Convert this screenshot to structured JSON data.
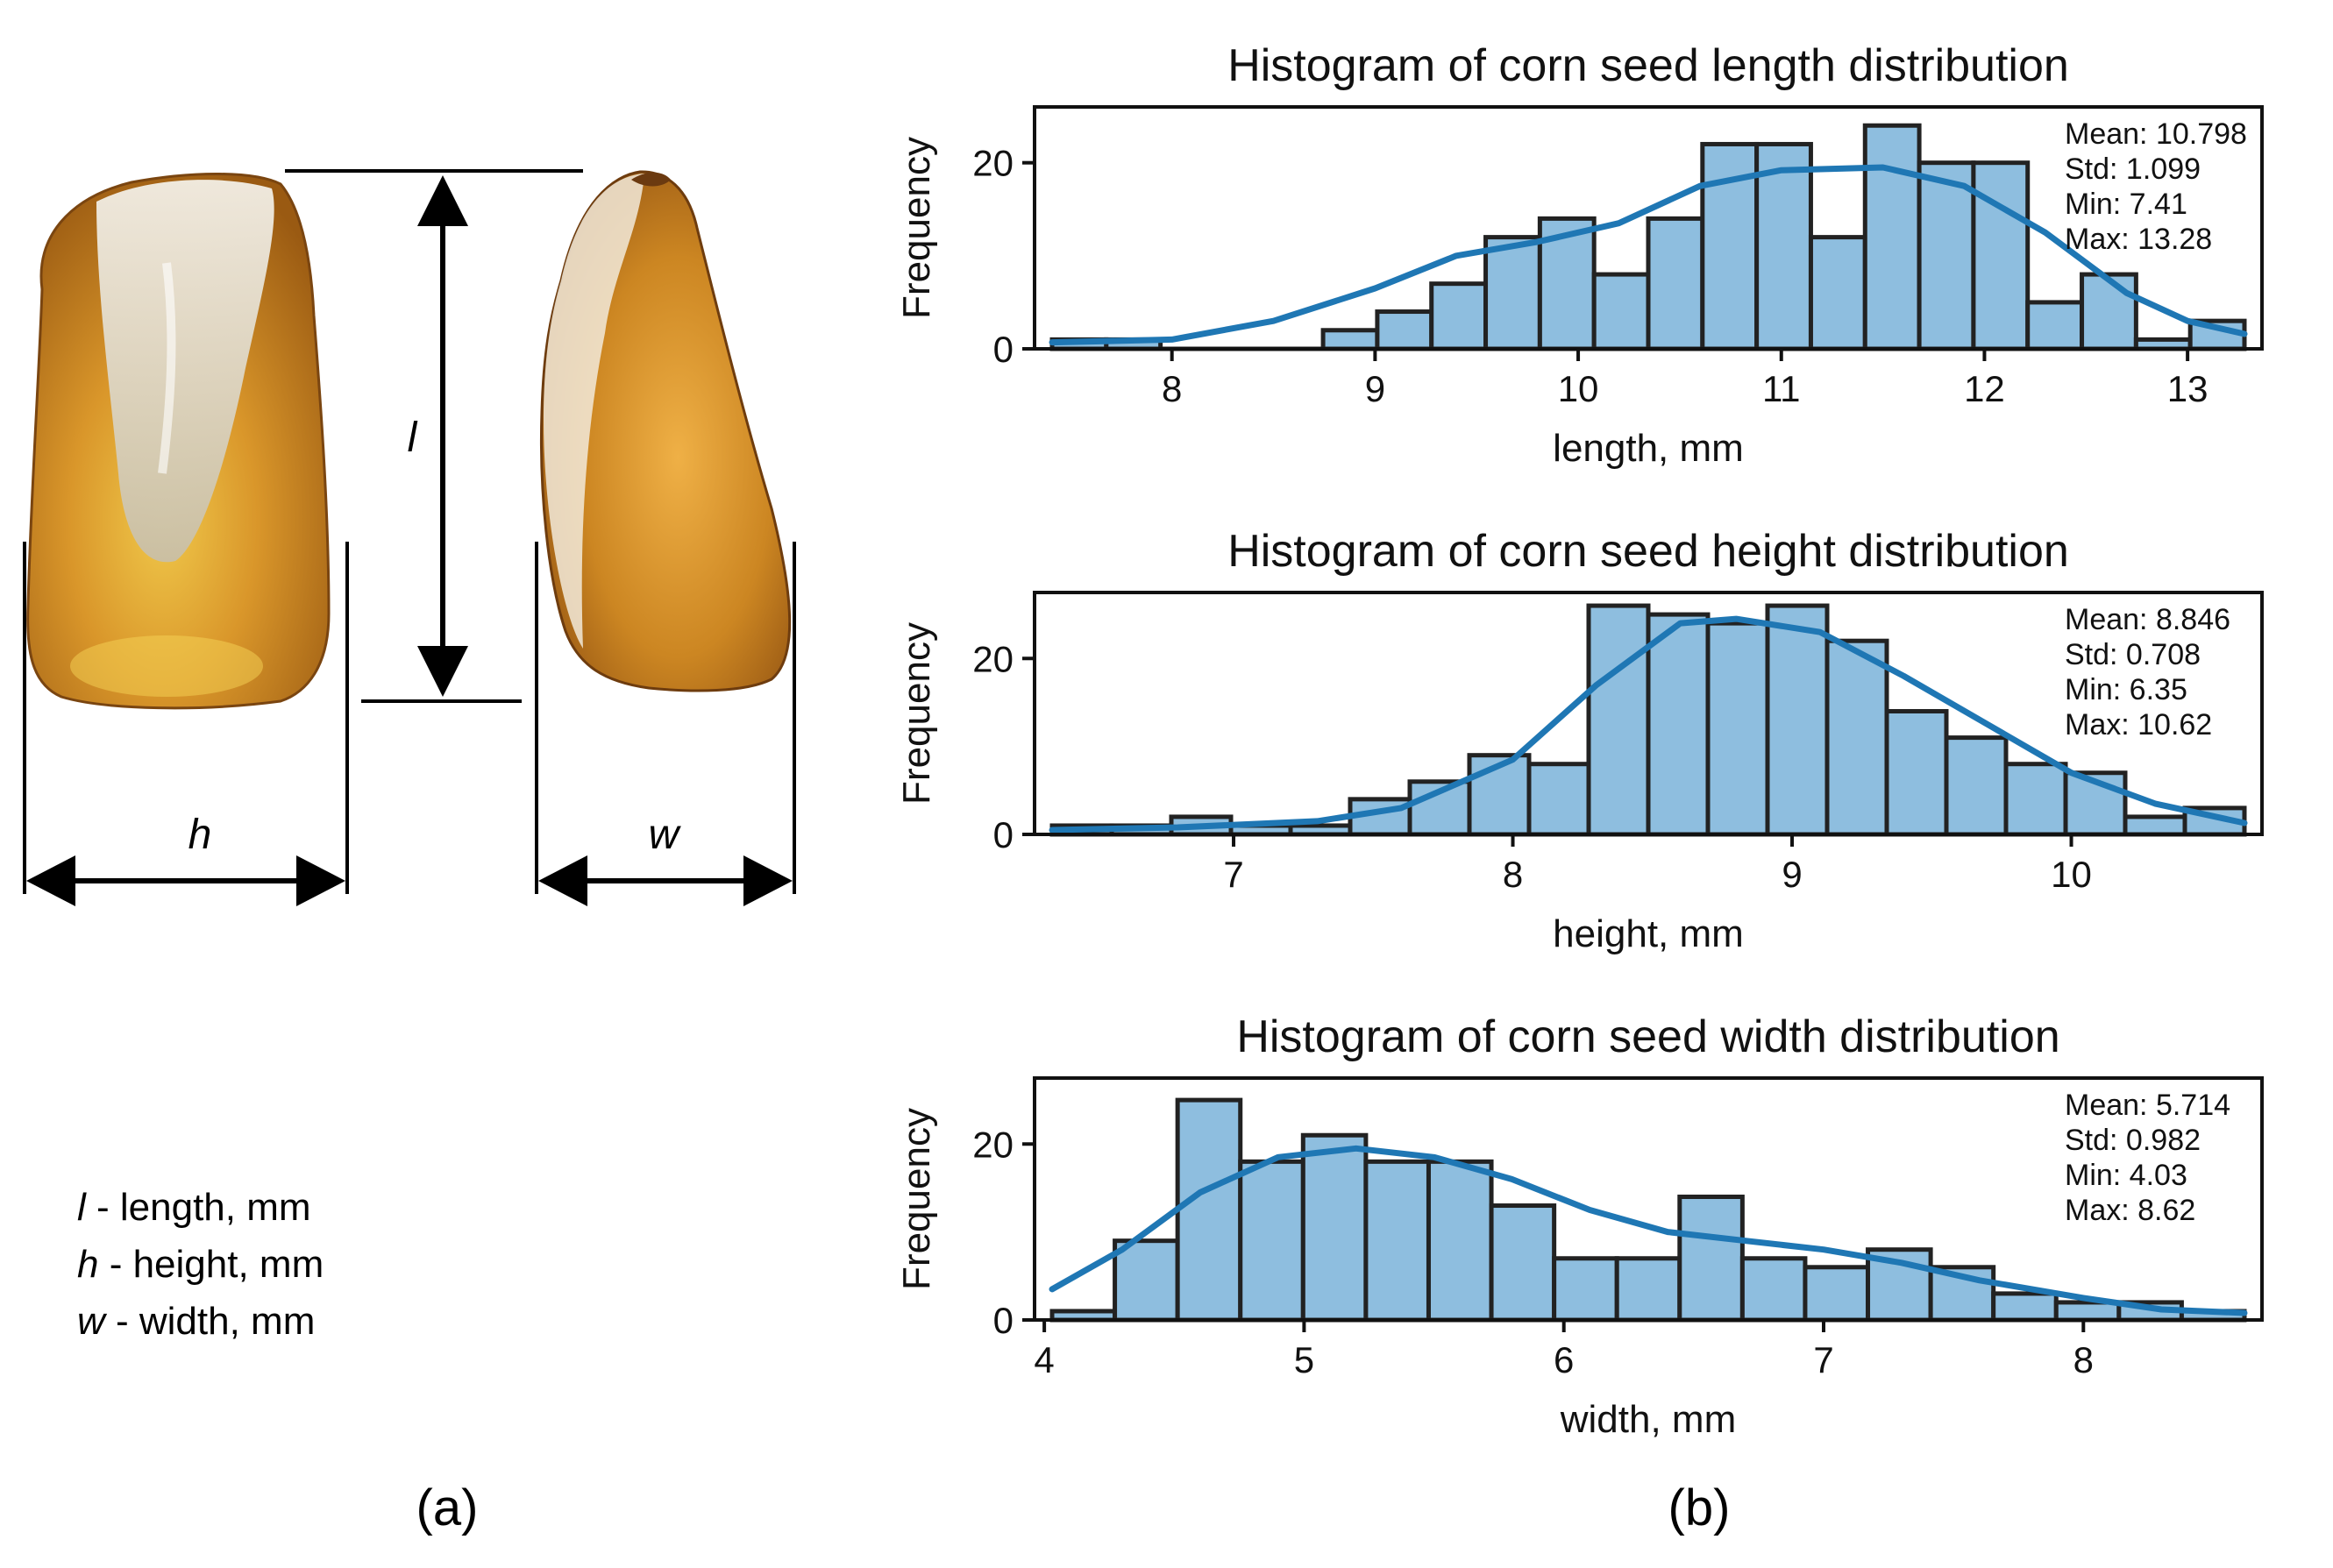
{
  "panel_a": {
    "dimension_labels": {
      "length": "l",
      "height": "h",
      "width": "w"
    },
    "legend": [
      {
        "symbol": "l",
        "text": " - length, mm"
      },
      {
        "symbol": "h",
        "text": " - height, mm"
      },
      {
        "symbol": "w",
        "text": " - width, mm"
      }
    ],
    "caption": "(a)"
  },
  "panel_b": {
    "caption": "(b)"
  },
  "colors": {
    "bar_fill": "#8ebedf",
    "bar_edge": "#222222",
    "kde": "#1f77b4",
    "axis": "#111111",
    "kernel_shade": "#c98a1c"
  },
  "chart_data": [
    {
      "type": "bar",
      "title": "Histogram of corn seed length distribution",
      "xlabel": "length, mm",
      "ylabel": "Frequency",
      "bin_start": 7.41,
      "bin_end": 13.28,
      "values": [
        1,
        1,
        0,
        0,
        0,
        2,
        4,
        7,
        12,
        14,
        8,
        14,
        22,
        22,
        12,
        24,
        20,
        20,
        5,
        8,
        1,
        3
      ],
      "kde": [
        [
          7.41,
          0.7
        ],
        [
          8.0,
          1.0
        ],
        [
          8.5,
          3.0
        ],
        [
          9.0,
          6.5
        ],
        [
          9.4,
          10.0
        ],
        [
          9.8,
          11.5
        ],
        [
          10.2,
          13.5
        ],
        [
          10.6,
          17.5
        ],
        [
          11.0,
          19.2
        ],
        [
          11.5,
          19.5
        ],
        [
          11.9,
          17.5
        ],
        [
          12.3,
          12.5
        ],
        [
          12.7,
          6.0
        ],
        [
          13.0,
          3.0
        ],
        [
          13.28,
          1.6
        ]
      ],
      "xlim": [
        7.41,
        13.28
      ],
      "xticks": [
        8,
        9,
        10,
        11,
        12,
        13
      ],
      "ylim": [
        0,
        26
      ],
      "yticks": [
        0,
        20
      ],
      "stats": [
        "Mean: 10.798",
        "Std: 1.099",
        "Min: 7.41",
        "Max: 13.28"
      ],
      "grid": false
    },
    {
      "type": "bar",
      "title": "Histogram of corn seed height distribution",
      "xlabel": "height, mm",
      "ylabel": "Frequency",
      "bin_start": 6.35,
      "bin_end": 10.62,
      "values": [
        1,
        1,
        2,
        1,
        1,
        4,
        6,
        9,
        8,
        26,
        25,
        24,
        26,
        22,
        14,
        11,
        8,
        7,
        2,
        3
      ],
      "kde": [
        [
          6.35,
          0.5
        ],
        [
          6.8,
          0.8
        ],
        [
          7.3,
          1.5
        ],
        [
          7.6,
          3.0
        ],
        [
          8.0,
          8.5
        ],
        [
          8.3,
          17.0
        ],
        [
          8.6,
          24.0
        ],
        [
          8.8,
          24.5
        ],
        [
          9.1,
          23.0
        ],
        [
          9.4,
          18.0
        ],
        [
          9.7,
          12.5
        ],
        [
          10.0,
          7.0
        ],
        [
          10.3,
          3.5
        ],
        [
          10.62,
          1.3
        ]
      ],
      "xlim": [
        6.35,
        10.62
      ],
      "xticks": [
        7,
        8,
        9,
        10
      ],
      "ylim": [
        0,
        27.5
      ],
      "yticks": [
        0,
        20
      ],
      "stats": [
        "Mean: 8.846",
        "Std: 0.708",
        "Min: 6.35",
        "Max: 10.62"
      ],
      "grid": false
    },
    {
      "type": "bar",
      "title": "Histogram of corn seed width distribution",
      "xlabel": "width, mm",
      "ylabel": "Frequency",
      "bin_start": 4.03,
      "bin_end": 8.62,
      "values": [
        1,
        9,
        25,
        18,
        21,
        18,
        18,
        13,
        7,
        7,
        14,
        7,
        6,
        8,
        6,
        3,
        2,
        2,
        1
      ],
      "kde": [
        [
          4.03,
          3.5
        ],
        [
          4.3,
          8.0
        ],
        [
          4.6,
          14.5
        ],
        [
          4.9,
          18.5
        ],
        [
          5.2,
          19.5
        ],
        [
          5.5,
          18.5
        ],
        [
          5.8,
          16.0
        ],
        [
          6.1,
          12.5
        ],
        [
          6.4,
          10.0
        ],
        [
          6.7,
          9.0
        ],
        [
          7.0,
          8.0
        ],
        [
          7.3,
          6.5
        ],
        [
          7.6,
          4.5
        ],
        [
          8.0,
          2.5
        ],
        [
          8.3,
          1.2
        ],
        [
          8.62,
          0.8
        ]
      ],
      "xlim": [
        4.03,
        8.62
      ],
      "xticks": [
        4,
        5,
        6,
        7,
        8
      ],
      "ylim": [
        0,
        27.5
      ],
      "yticks": [
        0,
        20
      ],
      "stats": [
        "Mean: 5.714",
        "Std: 0.982",
        "Min: 4.03",
        "Max: 8.62"
      ],
      "grid": false
    }
  ]
}
